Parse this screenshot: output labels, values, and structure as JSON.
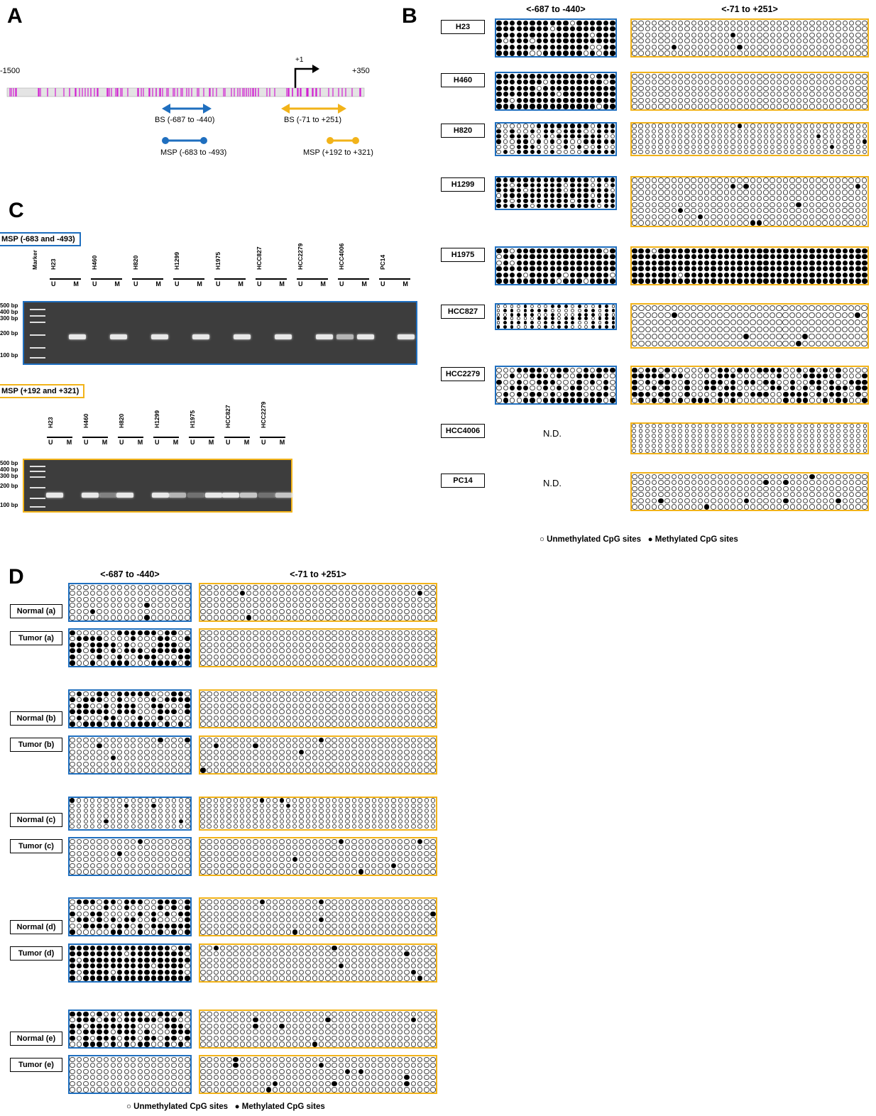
{
  "panels": {
    "A": "A",
    "B": "B",
    "C": "C",
    "D": "D"
  },
  "panelA": {
    "start": "-1500",
    "end": "+350",
    "tss": "+1",
    "bs1": "BS (-687 to -440)",
    "bs2": "BS (-71 to +251)",
    "msp1": "MSP (-683 to -493)",
    "msp2": "MSP (+192 to +321)",
    "colors": {
      "blue": "#1f6fbf",
      "gold": "#f2b319",
      "cpg": "#d21fd2"
    }
  },
  "panelB": {
    "col1": "<-687 to -440>",
    "col2": "<-71 to +251>",
    "nd": "N.D.",
    "legend_u": "○ Unmethylated CpG sites",
    "legend_m": "● Methylated CpG sites",
    "rows": [
      {
        "label": "H23",
        "c1": "heavy",
        "c2": "low"
      },
      {
        "label": "H460",
        "c1": "heavy",
        "c2": "none"
      },
      {
        "label": "H820",
        "c1": "mid",
        "c2": "low"
      },
      {
        "label": "H1299",
        "c1": "heavy",
        "c2": "low"
      },
      {
        "label": "H1975",
        "c1": "heavy",
        "c2": "full"
      },
      {
        "label": "HCC827",
        "c1": "mid",
        "c2": "low"
      },
      {
        "label": "HCC2279",
        "c1": "mid",
        "c2": "mid"
      },
      {
        "label": "HCC4006",
        "c1": "nd",
        "c2": "none"
      },
      {
        "label": "PC14",
        "c1": "nd",
        "c2": "low"
      }
    ]
  },
  "panelC": {
    "gel1_title": "MSP (-683 and -493)",
    "gel2_title": "MSP (+192 and +321)",
    "marker": "Marker",
    "u": "U",
    "m": "M",
    "bp_labels": [
      "500 bp",
      "400 bp",
      "300 bp",
      "200 bp",
      "100 bp"
    ],
    "gel1_lanes": [
      "H23",
      "H460",
      "H820",
      "H1299",
      "H1975",
      "HCC827",
      "HCC2279",
      "HCC4006",
      "PC14"
    ],
    "gel2_lanes": [
      "H23",
      "H460",
      "H820",
      "H1299",
      "H1975",
      "HCC827",
      "HCC2279"
    ]
  },
  "panelD": {
    "col1": "<-687 to -440>",
    "col2": "<-71 to +251>",
    "legend_u": "○ Unmethylated CpG sites",
    "legend_m": "● Methylated CpG sites",
    "samples": [
      "Normal (a)",
      "Tumor (a)",
      "Normal (b)",
      "Tumor (b)",
      "Normal (c)",
      "Tumor (c)",
      "Normal (d)",
      "Tumor (d)",
      "Normal (e)",
      "Tumor (e)"
    ]
  }
}
